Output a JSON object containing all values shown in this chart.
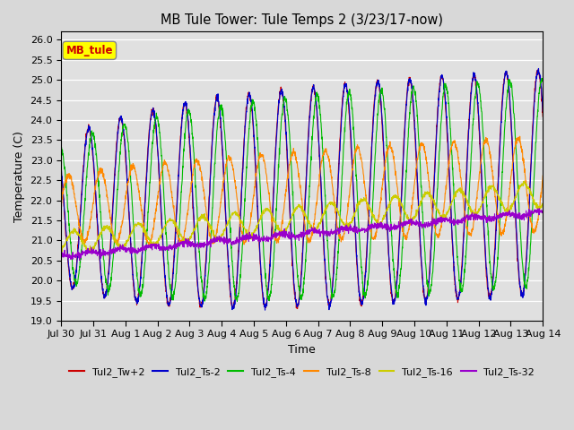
{
  "title": "MB Tule Tower: Tule Temps 2 (3/23/17-now)",
  "xlabel": "Time",
  "ylabel": "Temperature (C)",
  "ylim": [
    19.0,
    26.2
  ],
  "yticks": [
    19.0,
    19.5,
    20.0,
    20.5,
    21.0,
    21.5,
    22.0,
    22.5,
    23.0,
    23.5,
    24.0,
    24.5,
    25.0,
    25.5,
    26.0
  ],
  "background_color": "#d8d8d8",
  "plot_bg_color": "#e0e0e0",
  "legend_label": "MB_tule",
  "legend_bg": "#ffff00",
  "legend_text_color": "#cc0000",
  "colors": {
    "Tul2_Tw+2": "#cc0000",
    "Tul2_Ts-2": "#0000cc",
    "Tul2_Ts-4": "#00bb00",
    "Tul2_Ts-8": "#ff8800",
    "Tul2_Ts-16": "#cccc00",
    "Tul2_Ts-32": "#9900cc"
  },
  "x_tick_labels": [
    "Jul 30",
    "Jul 31",
    "Aug 1",
    "Aug 2",
    "Aug 3",
    "Aug 4",
    "Aug 5",
    "Aug 6",
    "Aug 7",
    "Aug 8",
    "Aug 9",
    "Aug 10",
    "Aug 11",
    "Aug 12",
    "Aug 13",
    "Aug 14"
  ],
  "num_days": 15.0,
  "points_per_day": 144,
  "figsize": [
    6.4,
    4.8
  ],
  "dpi": 100
}
